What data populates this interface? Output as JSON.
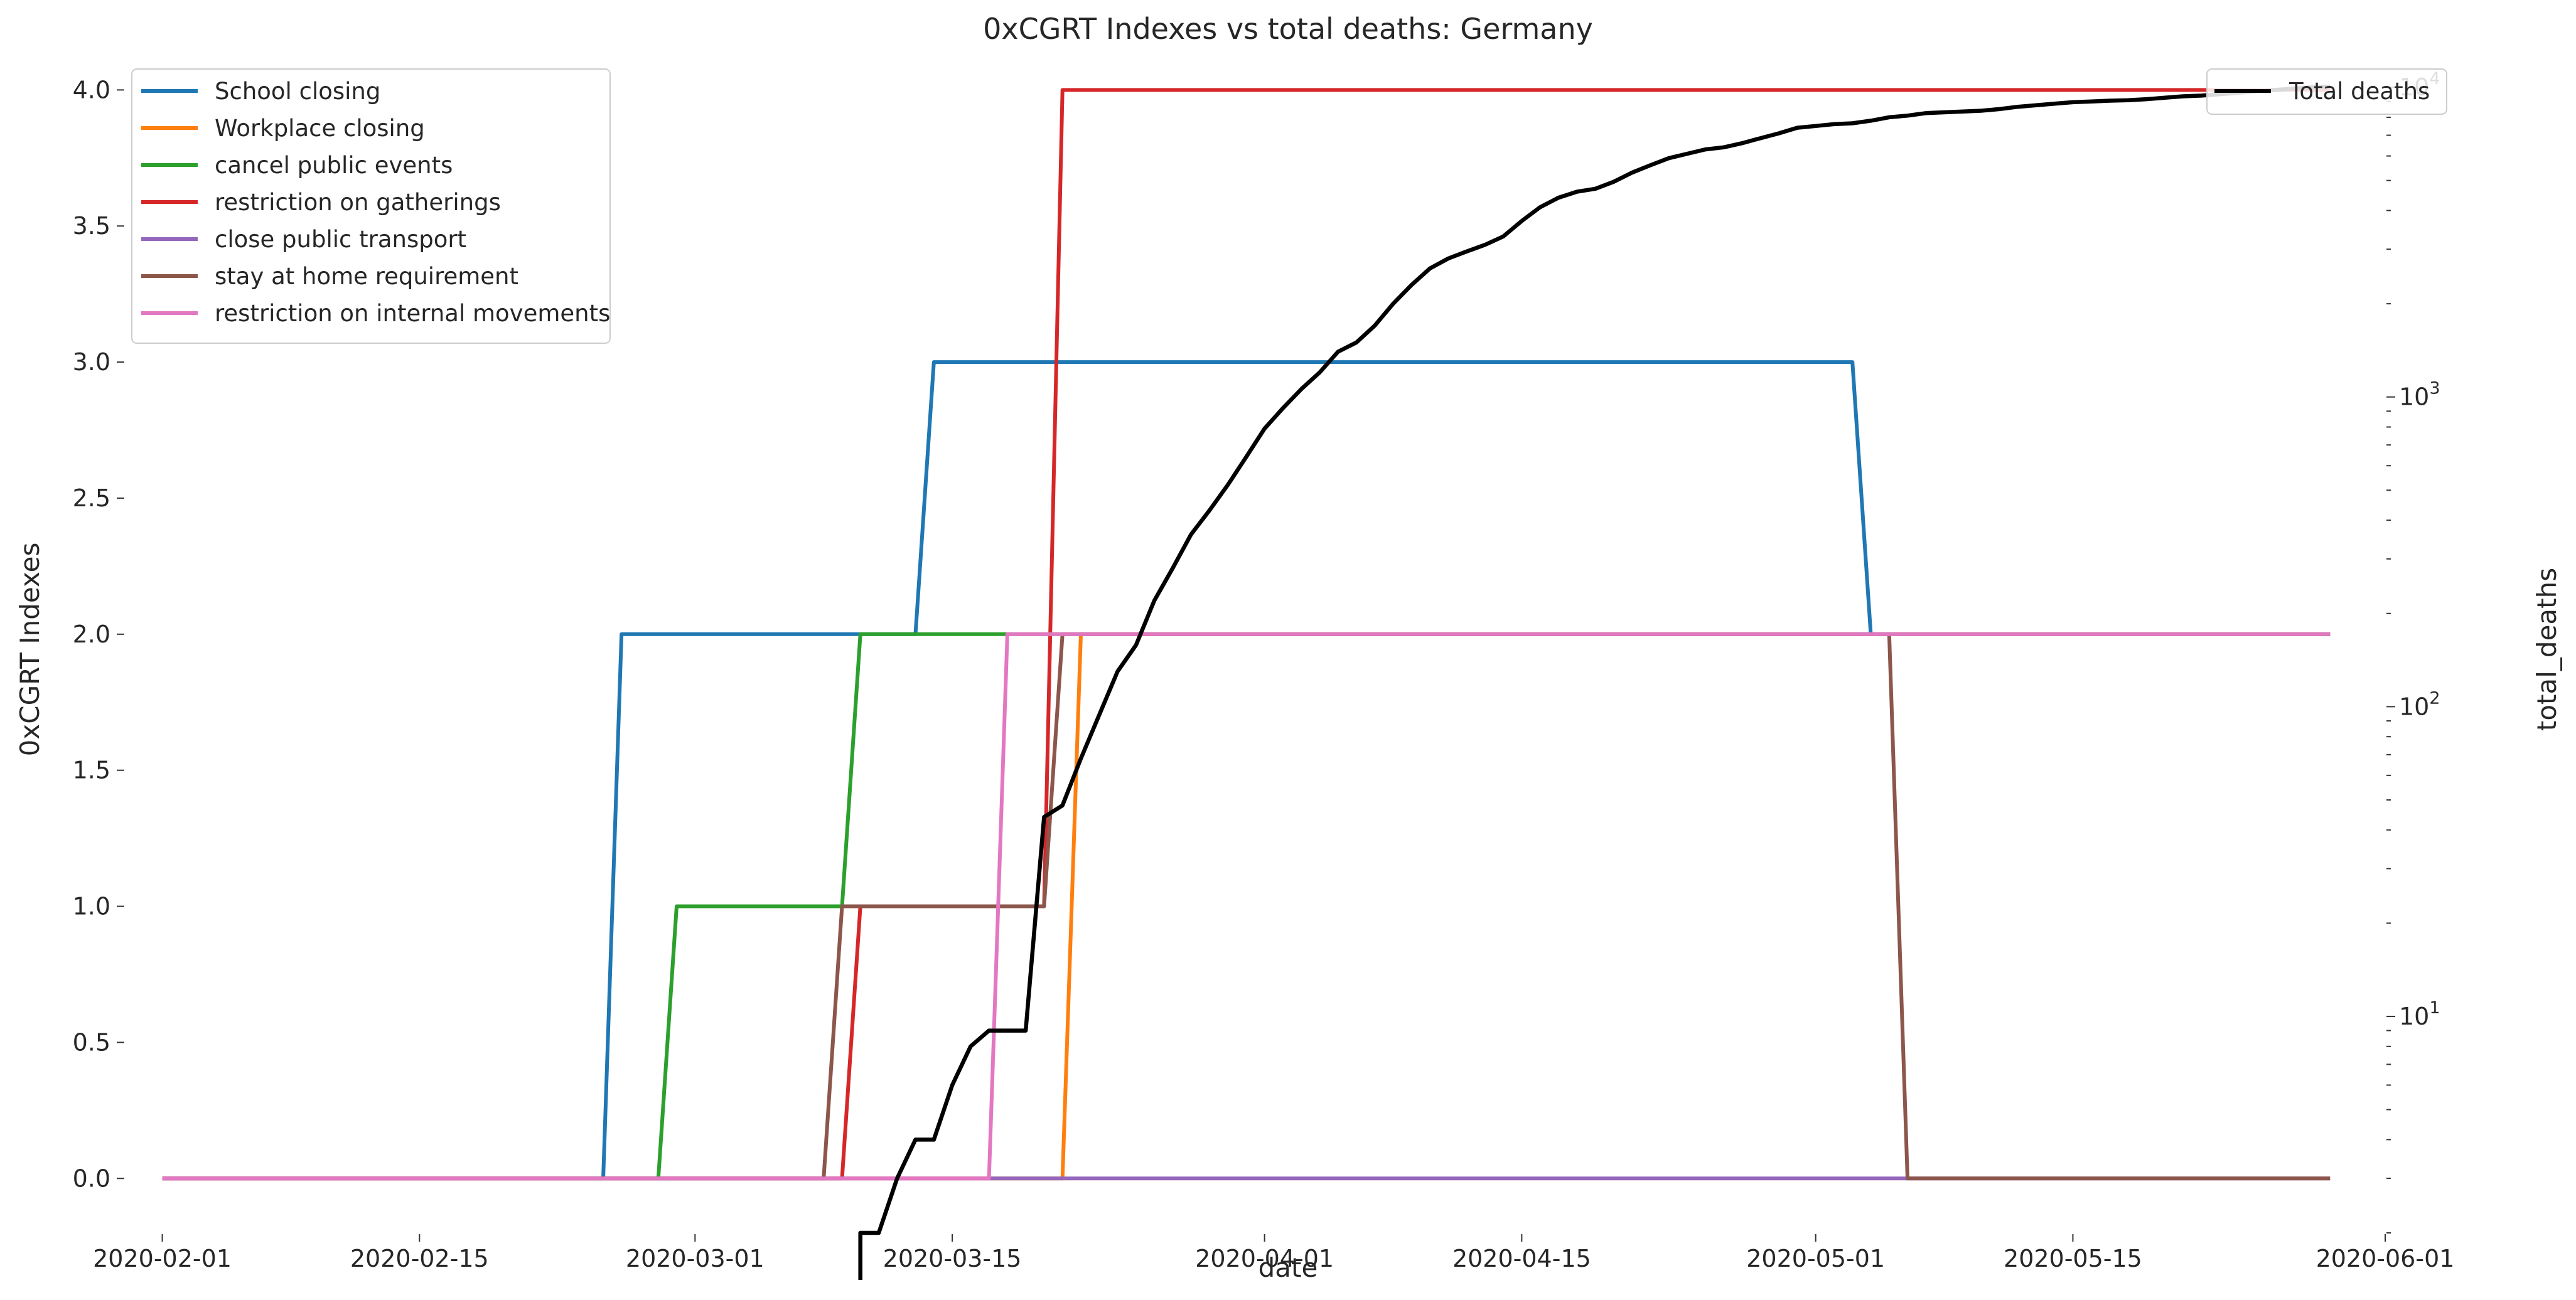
{
  "chart_data": {
    "type": "line",
    "title": "0xCGRT Indexes vs total deaths:  Germany",
    "xlabel": "date",
    "ylabel": "0xCGRT Indexes",
    "y2label": "total_deaths",
    "x_range": [
      "2020-01-30",
      "2020-06-01"
    ],
    "ylim": [
      -0.2,
      4.1
    ],
    "y2_scale": "log",
    "y2lim": [
      2,
      12000
    ],
    "grid": false,
    "legend_left_placement": "upper-left",
    "legend_right_placement": "upper-right",
    "x_ticks": [
      "2020-02-01",
      "2020-02-15",
      "2020-03-01",
      "2020-03-15",
      "2020-04-01",
      "2020-04-15",
      "2020-05-01",
      "2020-05-15",
      "2020-06-01"
    ],
    "y_ticks": [
      "0.0",
      "0.5",
      "1.0",
      "1.5",
      "2.0",
      "2.5",
      "3.0",
      "3.5",
      "4.0"
    ],
    "y2_ticks": [
      {
        "value": 10,
        "base": "10",
        "exp": "1"
      },
      {
        "value": 100,
        "base": "10",
        "exp": "2"
      },
      {
        "value": 1000,
        "base": "10",
        "exp": "3"
      },
      {
        "value": 10000,
        "base": "10",
        "exp": "4"
      }
    ],
    "series": [
      {
        "name": "School closing",
        "color": "#1f77b4",
        "points": [
          [
            "2020-02-01",
            0
          ],
          [
            "2020-02-25",
            0
          ],
          [
            "2020-02-26",
            2
          ],
          [
            "2020-03-13",
            2
          ],
          [
            "2020-03-14",
            3
          ],
          [
            "2020-05-03",
            3
          ],
          [
            "2020-05-04",
            2
          ],
          [
            "2020-05-29",
            2
          ]
        ]
      },
      {
        "name": "Workplace closing",
        "color": "#ff7f0e",
        "points": [
          [
            "2020-02-01",
            0
          ],
          [
            "2020-03-21",
            0
          ],
          [
            "2020-03-22",
            2
          ],
          [
            "2020-05-29",
            2
          ]
        ]
      },
      {
        "name": "cancel public events",
        "color": "#2ca02c",
        "points": [
          [
            "2020-02-01",
            0
          ],
          [
            "2020-02-28",
            0
          ],
          [
            "2020-02-29",
            1
          ],
          [
            "2020-03-09",
            1
          ],
          [
            "2020-03-10",
            2
          ],
          [
            "2020-05-29",
            2
          ]
        ]
      },
      {
        "name": "restriction on gatherings",
        "color": "#d62728",
        "points": [
          [
            "2020-02-01",
            0
          ],
          [
            "2020-03-09",
            0
          ],
          [
            "2020-03-10",
            1
          ],
          [
            "2020-03-20",
            1
          ],
          [
            "2020-03-21",
            4
          ],
          [
            "2020-05-29",
            4
          ]
        ]
      },
      {
        "name": "close public transport",
        "color": "#9467bd",
        "points": [
          [
            "2020-02-01",
            0
          ],
          [
            "2020-05-29",
            0
          ]
        ]
      },
      {
        "name": "stay at home requirement",
        "color": "#8c564b",
        "points": [
          [
            "2020-02-01",
            0
          ],
          [
            "2020-03-08",
            0
          ],
          [
            "2020-03-09",
            1
          ],
          [
            "2020-03-20",
            1
          ],
          [
            "2020-03-21",
            2
          ],
          [
            "2020-05-05",
            2
          ],
          [
            "2020-05-06",
            0
          ],
          [
            "2020-05-29",
            0
          ]
        ]
      },
      {
        "name": "restriction on internal movements",
        "color": "#e377c2",
        "points": [
          [
            "2020-02-01",
            0
          ],
          [
            "2020-03-17",
            0
          ],
          [
            "2020-03-18",
            2
          ],
          [
            "2020-05-29",
            2
          ]
        ]
      }
    ],
    "y2_series": [
      {
        "name": "Total deaths",
        "color": "#000000",
        "points": [
          [
            "2020-03-10",
            2
          ],
          [
            "2020-03-11",
            2
          ],
          [
            "2020-03-12",
            3
          ],
          [
            "2020-03-13",
            4
          ],
          [
            "2020-03-14",
            4
          ],
          [
            "2020-03-15",
            6
          ],
          [
            "2020-03-16",
            8
          ],
          [
            "2020-03-17",
            9
          ],
          [
            "2020-03-18",
            9
          ],
          [
            "2020-03-19",
            9
          ],
          [
            "2020-03-20",
            44
          ],
          [
            "2020-03-21",
            48
          ],
          [
            "2020-03-22",
            68
          ],
          [
            "2020-03-23",
            94
          ],
          [
            "2020-03-24",
            130
          ],
          [
            "2020-03-25",
            158
          ],
          [
            "2020-03-26",
            220
          ],
          [
            "2020-03-27",
            280
          ],
          [
            "2020-03-28",
            360
          ],
          [
            "2020-03-29",
            430
          ],
          [
            "2020-03-30",
            520
          ],
          [
            "2020-03-31",
            640
          ],
          [
            "2020-04-01",
            790
          ],
          [
            "2020-04-02",
            920
          ],
          [
            "2020-04-03",
            1060
          ],
          [
            "2020-04-04",
            1200
          ],
          [
            "2020-04-05",
            1400
          ],
          [
            "2020-04-06",
            1500
          ],
          [
            "2020-04-07",
            1700
          ],
          [
            "2020-04-08",
            2000
          ],
          [
            "2020-04-09",
            2300
          ],
          [
            "2020-04-10",
            2600
          ],
          [
            "2020-04-11",
            2800
          ],
          [
            "2020-04-12",
            2950
          ],
          [
            "2020-04-13",
            3100
          ],
          [
            "2020-04-14",
            3300
          ],
          [
            "2020-04-15",
            3700
          ],
          [
            "2020-04-16",
            4100
          ],
          [
            "2020-04-17",
            4400
          ],
          [
            "2020-04-18",
            4600
          ],
          [
            "2020-04-19",
            4700
          ],
          [
            "2020-04-20",
            4950
          ],
          [
            "2020-04-21",
            5300
          ],
          [
            "2020-04-22",
            5600
          ],
          [
            "2020-04-23",
            5900
          ],
          [
            "2020-04-24",
            6100
          ],
          [
            "2020-04-25",
            6300
          ],
          [
            "2020-04-26",
            6400
          ],
          [
            "2020-04-27",
            6600
          ],
          [
            "2020-04-28",
            6850
          ],
          [
            "2020-04-29",
            7100
          ],
          [
            "2020-04-30",
            7400
          ],
          [
            "2020-05-01",
            7500
          ],
          [
            "2020-05-02",
            7600
          ],
          [
            "2020-05-03",
            7650
          ],
          [
            "2020-05-04",
            7800
          ],
          [
            "2020-05-05",
            8000
          ],
          [
            "2020-05-06",
            8100
          ],
          [
            "2020-05-07",
            8250
          ],
          [
            "2020-05-08",
            8300
          ],
          [
            "2020-05-09",
            8350
          ],
          [
            "2020-05-10",
            8400
          ],
          [
            "2020-05-11",
            8500
          ],
          [
            "2020-05-12",
            8650
          ],
          [
            "2020-05-13",
            8750
          ],
          [
            "2020-05-14",
            8850
          ],
          [
            "2020-05-15",
            8950
          ],
          [
            "2020-05-16",
            9000
          ],
          [
            "2020-05-17",
            9050
          ],
          [
            "2020-05-18",
            9080
          ],
          [
            "2020-05-19",
            9150
          ],
          [
            "2020-05-20",
            9250
          ],
          [
            "2020-05-21",
            9350
          ],
          [
            "2020-05-22",
            9400
          ],
          [
            "2020-05-23",
            9500
          ],
          [
            "2020-05-24",
            9600
          ],
          [
            "2020-05-25",
            9700
          ],
          [
            "2020-05-26",
            9800
          ],
          [
            "2020-05-27",
            9900
          ],
          [
            "2020-05-28",
            10000
          ],
          [
            "2020-05-29",
            10050
          ]
        ]
      }
    ]
  }
}
